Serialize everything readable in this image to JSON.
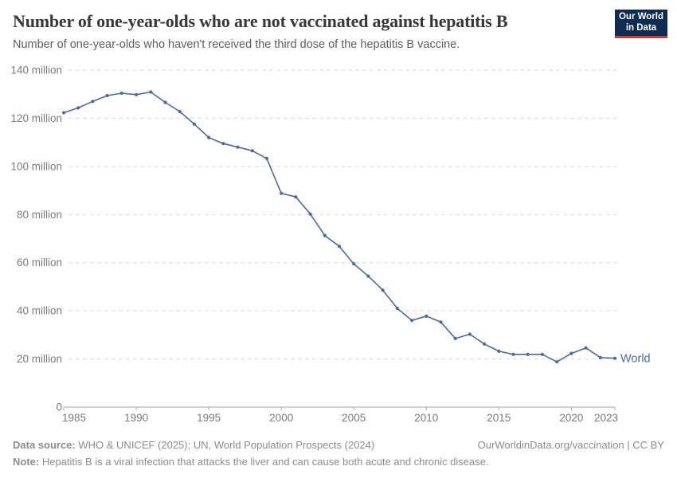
{
  "header": {
    "title": "Number of one-year-olds who are not vaccinated against hepatitis B",
    "subtitle": "Number of one-year-olds who haven't received the third dose of the hepatitis B vaccine."
  },
  "logo": {
    "line1": "Our World",
    "line2": "in Data",
    "bg_color": "#0f2d52",
    "bar_color": "#cf3a2b"
  },
  "chart_data": {
    "type": "line",
    "title": "Number of one-year-olds who are not vaccinated against hepatitis B",
    "unit": "million",
    "x": [
      1985,
      1986,
      1987,
      1988,
      1989,
      1990,
      1991,
      1992,
      1993,
      1994,
      1995,
      1996,
      1997,
      1998,
      1999,
      2000,
      2001,
      2002,
      2003,
      2004,
      2005,
      2006,
      2007,
      2008,
      2009,
      2010,
      2011,
      2012,
      2013,
      2014,
      2015,
      2016,
      2017,
      2018,
      2019,
      2020,
      2021,
      2022,
      2023
    ],
    "series": [
      {
        "name": "World",
        "color": "#4C6A9C",
        "values": [
          122.3,
          124.3,
          127.0,
          129.4,
          130.4,
          129.8,
          130.9,
          126.6,
          122.8,
          117.6,
          112.0,
          109.5,
          108.0,
          106.5,
          103.3,
          88.8,
          87.3,
          80.2,
          71.3,
          66.8,
          59.5,
          54.4,
          48.6,
          41.0,
          36.0,
          37.8,
          35.3,
          28.5,
          30.3,
          26.2,
          23.2,
          21.9,
          21.9,
          21.9,
          18.8,
          22.3,
          24.6,
          20.6,
          20.3
        ]
      }
    ],
    "ylim": [
      0,
      140
    ],
    "y_ticks": [
      0,
      20,
      40,
      60,
      80,
      100,
      120,
      140
    ],
    "y_tick_suffix": " million",
    "x_ticks": [
      1985,
      1990,
      1995,
      2000,
      2005,
      2010,
      2015,
      2020,
      2023
    ],
    "grid": "horizontal-dashed",
    "legend": "end-of-line-label",
    "colors": {
      "grid": "#dadada",
      "axis": "#a6a6a6",
      "tick_text": "#7b7b7b"
    }
  },
  "footer": {
    "datasource_label": "Data source:",
    "datasource_text": "WHO & UNICEF (2025); UN, World Population Prospects (2024)",
    "attribution": "OurWorldinData.org/vaccination | CC BY",
    "note_label": "Note:",
    "note_text": "Hepatitis B is a viral infection that attacks the liver and can cause both acute and chronic disease."
  }
}
